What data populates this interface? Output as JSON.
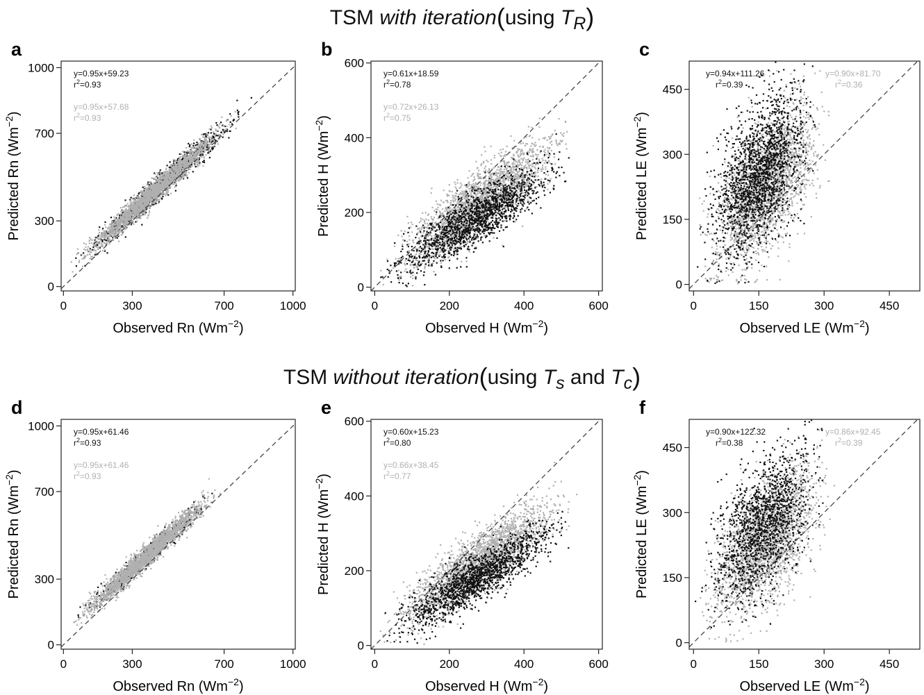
{
  "figure": {
    "row_titles": [
      {
        "prefix": "TSM ",
        "italic": "with iteration",
        "paren_open": "(",
        "using": "using ",
        "sym1": "T",
        "sub1": "R",
        "and": "",
        "sym2": "",
        "sub2": "",
        "paren_close": ")"
      },
      {
        "prefix": "TSM ",
        "italic": "without iteration",
        "paren_open": "(",
        "using": "using ",
        "sym1": "T",
        "sub1": "s",
        "and": " and ",
        "sym2": "T",
        "sub2": "c",
        "paren_close": ")"
      }
    ]
  },
  "chart_data": [
    {
      "type": "scatter",
      "panel": "a",
      "xlabel": "Observed Rn",
      "ylabel": "Predicted Rn",
      "unit": "Wm",
      "unit_exp": "−2",
      "xlim": [
        -10,
        1010
      ],
      "ylim": [
        -20,
        1030
      ],
      "xticks": [
        0,
        300,
        700,
        1000
      ],
      "yticks": [
        0,
        300,
        700,
        1000
      ],
      "series": [
        {
          "color": "#111111",
          "equation": "y=0.95x+59.23",
          "r2": "=0.93",
          "slope": 0.95,
          "intercept": 59.23,
          "x_range": [
            10,
            830
          ],
          "scatter_sd": 30,
          "n_points": 1100
        },
        {
          "color": "#b0b0b0",
          "equation": "y=0.95x+57.68",
          "r2": "=0.93",
          "slope": 0.95,
          "intercept": 57.68,
          "x_range": [
            10,
            780
          ],
          "scatter_sd": 26,
          "n_points": 2200
        }
      ],
      "one_to_one": true
    },
    {
      "type": "scatter",
      "panel": "b",
      "xlabel": "Observed H",
      "ylabel": "Predicted H",
      "unit": "Wm",
      "unit_exp": "−2",
      "xlim": [
        -10,
        610
      ],
      "ylim": [
        -10,
        605
      ],
      "xticks": [
        0,
        200,
        400,
        600
      ],
      "yticks": [
        0,
        200,
        400,
        600
      ],
      "series": [
        {
          "color": "#b0b0b0",
          "equation": "y=0.72x+26.13",
          "r2": "=0.75",
          "slope": 0.72,
          "intercept": 26.13,
          "x_range": [
            0,
            560
          ],
          "scatter_sd": 42,
          "n_points": 2200
        },
        {
          "color": "#111111",
          "equation": "y=0.61x+18.59",
          "r2": "=0.78",
          "slope": 0.61,
          "intercept": 18.59,
          "x_range": [
            0,
            550
          ],
          "scatter_sd": 36,
          "n_points": 1500
        }
      ],
      "one_to_one": true
    },
    {
      "type": "scatter",
      "panel": "c",
      "xlabel": "Observed LE",
      "ylabel": "Predicted LE",
      "unit": "Wm",
      "unit_exp": "−2",
      "xlim": [
        -10,
        520
      ],
      "ylim": [
        -15,
        515
      ],
      "xticks": [
        0,
        150,
        300,
        450
      ],
      "yticks": [
        0,
        150,
        300,
        450
      ],
      "series": [
        {
          "color": "#b0b0b0",
          "equation": "y=0.90x+81.70",
          "r2": "=0.36",
          "slope": 0.9,
          "intercept": 81.7,
          "x_range": [
            0,
            330
          ],
          "scatter_sd": 72,
          "n_points": 2200
        },
        {
          "color": "#111111",
          "equation": "y=0.94x+111.26",
          "r2": "=0.39",
          "slope": 0.94,
          "intercept": 111.26,
          "x_range": [
            0,
            300
          ],
          "scatter_sd": 78,
          "n_points": 1800
        }
      ],
      "one_to_one": true
    },
    {
      "type": "scatter",
      "panel": "d",
      "xlabel": "Observed Rn",
      "ylabel": "Predicted Rn",
      "unit": "Wm",
      "unit_exp": "−2",
      "xlim": [
        -10,
        1010
      ],
      "ylim": [
        -20,
        1030
      ],
      "xticks": [
        0,
        300,
        700,
        1000
      ],
      "yticks": [
        0,
        300,
        700,
        1000
      ],
      "series": [
        {
          "color": "#111111",
          "equation": "y=0.95x+61.46",
          "r2": "=0.93",
          "slope": 0.95,
          "intercept": 61.46,
          "x_range": [
            10,
            700
          ],
          "scatter_sd": 24,
          "n_points": 500
        },
        {
          "color": "#b0b0b0",
          "equation": "y=0.95x+61.46",
          "r2": "=0.93",
          "slope": 0.95,
          "intercept": 61.46,
          "x_range": [
            10,
            700
          ],
          "scatter_sd": 26,
          "n_points": 2200
        }
      ],
      "one_to_one": true
    },
    {
      "type": "scatter",
      "panel": "e",
      "xlabel": "Observed H",
      "ylabel": "Predicted H",
      "unit": "Wm",
      "unit_exp": "−2",
      "xlim": [
        -10,
        610
      ],
      "ylim": [
        -10,
        605
      ],
      "xticks": [
        0,
        200,
        400,
        600
      ],
      "yticks": [
        0,
        200,
        400,
        600
      ],
      "series": [
        {
          "color": "#b0b0b0",
          "equation": "y=0.66x+38.45",
          "r2": "=0.77",
          "slope": 0.66,
          "intercept": 38.45,
          "x_range": [
            0,
            550
          ],
          "scatter_sd": 38,
          "n_points": 2200
        },
        {
          "color": "#111111",
          "equation": "y=0.60x+15.23",
          "r2": "=0.80",
          "slope": 0.6,
          "intercept": 15.23,
          "x_range": [
            0,
            550
          ],
          "scatter_sd": 32,
          "n_points": 1500
        }
      ],
      "one_to_one": true
    },
    {
      "type": "scatter",
      "panel": "f",
      "xlabel": "Observed LE",
      "ylabel": "Predicted LE",
      "unit": "Wm",
      "unit_exp": "−2",
      "xlim": [
        -10,
        520
      ],
      "ylim": [
        -15,
        515
      ],
      "xticks": [
        0,
        150,
        300,
        450
      ],
      "yticks": [
        0,
        150,
        300,
        450
      ],
      "series": [
        {
          "color": "#b0b0b0",
          "equation": "y=0.86x+92.45",
          "r2": "=0.39",
          "slope": 0.86,
          "intercept": 92.45,
          "x_range": [
            0,
            330
          ],
          "scatter_sd": 68,
          "n_points": 2200
        },
        {
          "color": "#111111",
          "equation": "y=0.90x+122.32",
          "r2": "=0.38",
          "slope": 0.9,
          "intercept": 122.32,
          "x_range": [
            0,
            320
          ],
          "scatter_sd": 72,
          "n_points": 1500
        }
      ],
      "one_to_one": true
    }
  ]
}
